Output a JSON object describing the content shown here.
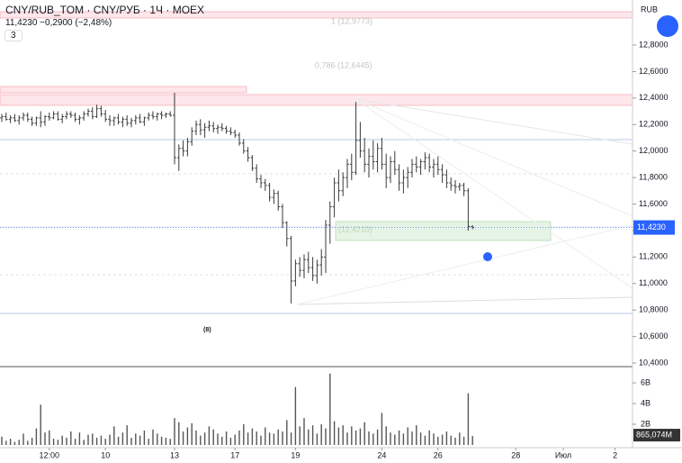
{
  "header": {
    "symbol": "CNY/RUB_TOM · CNY/РУБ · 1Ч · MOEX",
    "quote": "11,4230 −0,2900 (−2,48%)",
    "indicators_count": "3",
    "currency": "RUB"
  },
  "chart_data": {
    "type": "ohlc",
    "annotations": [
      "1 (12,9773)",
      "0,786 (12,6445)",
      "(11,4210)",
      "(8)"
    ],
    "ylim": [
      10.373,
      13.14
    ],
    "yticks": [
      {
        "value": 10.4,
        "label": "10,4000"
      },
      {
        "value": 10.6,
        "label": "10,6000"
      },
      {
        "value": 10.8,
        "label": "10,8000"
      },
      {
        "value": 11,
        "label": "11,0000"
      },
      {
        "value": 11.2,
        "label": "11,2000"
      },
      {
        "value": 11.4,
        "label": "11,4000"
      },
      {
        "value": 11.6,
        "label": "11,6000"
      },
      {
        "value": 11.8,
        "label": "11,8000"
      },
      {
        "value": 12,
        "label": "12,0000"
      },
      {
        "value": 12.2,
        "label": "12,2000"
      },
      {
        "value": 12.4,
        "label": "12,4000"
      },
      {
        "value": 12.6,
        "label": "12,6000"
      },
      {
        "value": 12.8,
        "label": "12,8000"
      }
    ],
    "last_price": {
      "value": 11.423,
      "label": "11,4230"
    },
    "xticks": [
      {
        "value": 11,
        "label": "12:00"
      },
      {
        "value": 24,
        "label": "10"
      },
      {
        "value": 40,
        "label": "13"
      },
      {
        "value": 54,
        "label": "17"
      },
      {
        "value": 68,
        "label": "19"
      },
      {
        "value": 88,
        "label": "24"
      },
      {
        "value": 101,
        "label": "26"
      },
      {
        "value": 119,
        "label": "28"
      },
      {
        "value": 130,
        "label": "Июл"
      },
      {
        "value": 142,
        "label": "2"
      }
    ],
    "ohlc": [
      [
        12.25,
        12.28,
        12.22,
        12.26
      ],
      [
        12.26,
        12.29,
        12.23,
        12.24
      ],
      [
        12.24,
        12.27,
        12.21,
        12.25
      ],
      [
        12.25,
        12.28,
        12.22,
        12.23
      ],
      [
        12.23,
        12.27,
        12.2,
        12.25
      ],
      [
        12.25,
        12.29,
        12.23,
        12.27
      ],
      [
        12.27,
        12.29,
        12.22,
        12.24
      ],
      [
        12.24,
        12.26,
        12.19,
        12.21
      ],
      [
        12.21,
        12.26,
        12.19,
        12.25
      ],
      [
        12.25,
        12.3,
        12.18,
        12.22
      ],
      [
        12.22,
        12.27,
        12.19,
        12.26
      ],
      [
        12.26,
        12.29,
        12.23,
        12.25
      ],
      [
        12.25,
        12.3,
        12.24,
        12.28
      ],
      [
        12.28,
        12.3,
        12.23,
        12.24
      ],
      [
        12.24,
        12.28,
        12.21,
        12.26
      ],
      [
        12.26,
        12.3,
        12.24,
        12.28
      ],
      [
        12.28,
        12.3,
        12.25,
        12.27
      ],
      [
        12.27,
        12.29,
        12.22,
        12.24
      ],
      [
        12.24,
        12.27,
        12.2,
        12.25
      ],
      [
        12.25,
        12.3,
        12.23,
        12.28
      ],
      [
        12.28,
        12.32,
        12.26,
        12.3
      ],
      [
        12.3,
        12.33,
        12.24,
        12.26
      ],
      [
        12.26,
        12.35,
        12.25,
        12.32
      ],
      [
        12.32,
        12.34,
        12.26,
        12.28
      ],
      [
        12.28,
        12.31,
        12.22,
        12.24
      ],
      [
        12.24,
        12.27,
        12.19,
        12.23
      ],
      [
        12.23,
        12.26,
        12.19,
        12.25
      ],
      [
        12.25,
        12.28,
        12.2,
        12.22
      ],
      [
        12.22,
        12.26,
        12.18,
        12.24
      ],
      [
        12.24,
        12.27,
        12.19,
        12.21
      ],
      [
        12.21,
        12.25,
        12.18,
        12.23
      ],
      [
        12.23,
        12.27,
        12.2,
        12.25
      ],
      [
        12.25,
        12.28,
        12.21,
        12.22
      ],
      [
        12.22,
        12.26,
        12.19,
        12.25
      ],
      [
        12.25,
        12.29,
        12.23,
        12.27
      ],
      [
        12.27,
        12.3,
        12.24,
        12.26
      ],
      [
        12.26,
        12.29,
        12.23,
        12.28
      ],
      [
        12.28,
        12.3,
        12.24,
        12.27
      ],
      [
        12.27,
        12.29,
        12.25,
        12.28
      ],
      [
        12.28,
        12.3,
        12.26,
        12.27
      ],
      [
        12.27,
        12.44,
        11.9,
        11.95
      ],
      [
        11.95,
        12.05,
        11.85,
        12.02
      ],
      [
        12.02,
        12.08,
        11.96,
        12.0
      ],
      [
        12.0,
        12.1,
        11.96,
        12.07
      ],
      [
        12.07,
        12.18,
        12.04,
        12.15
      ],
      [
        12.15,
        12.23,
        12.12,
        12.2
      ],
      [
        12.2,
        12.24,
        12.12,
        12.16
      ],
      [
        12.16,
        12.21,
        12.1,
        12.18
      ],
      [
        12.18,
        12.23,
        12.15,
        12.19
      ],
      [
        12.19,
        12.22,
        12.14,
        12.17
      ],
      [
        12.17,
        12.2,
        12.13,
        12.18
      ],
      [
        12.18,
        12.21,
        12.15,
        12.17
      ],
      [
        12.17,
        12.19,
        12.13,
        12.15
      ],
      [
        12.15,
        12.18,
        12.12,
        12.14
      ],
      [
        12.14,
        12.16,
        12.1,
        12.12
      ],
      [
        12.12,
        12.14,
        12.04,
        12.06
      ],
      [
        12.06,
        12.09,
        11.98,
        12.0
      ],
      [
        12.0,
        12.03,
        11.92,
        11.95
      ],
      [
        11.95,
        11.97,
        11.85,
        11.87
      ],
      [
        11.87,
        11.9,
        11.76,
        11.79
      ],
      [
        11.79,
        11.82,
        11.72,
        11.76
      ],
      [
        11.76,
        11.79,
        11.7,
        11.74
      ],
      [
        11.74,
        11.76,
        11.62,
        11.65
      ],
      [
        11.65,
        11.71,
        11.6,
        11.68
      ],
      [
        11.68,
        11.7,
        11.55,
        11.58
      ],
      [
        11.58,
        11.6,
        11.42,
        11.46
      ],
      [
        11.46,
        11.47,
        11.28,
        11.34
      ],
      [
        11.34,
        11.36,
        10.85,
        11.02
      ],
      [
        11.02,
        11.18,
        10.98,
        11.15
      ],
      [
        11.15,
        11.2,
        11.05,
        11.1
      ],
      [
        11.1,
        11.22,
        11.04,
        11.18
      ],
      [
        11.18,
        11.24,
        11.08,
        11.12
      ],
      [
        11.12,
        11.2,
        11.02,
        11.06
      ],
      [
        11.06,
        11.18,
        11.0,
        11.14
      ],
      [
        11.14,
        11.26,
        11.06,
        11.2
      ],
      [
        11.2,
        11.48,
        11.08,
        11.44
      ],
      [
        11.44,
        11.62,
        11.3,
        11.58
      ],
      [
        11.58,
        11.8,
        11.5,
        11.76
      ],
      [
        11.76,
        11.86,
        11.62,
        11.7
      ],
      [
        11.7,
        11.84,
        11.66,
        11.8
      ],
      [
        11.8,
        11.94,
        11.72,
        11.9
      ],
      [
        11.9,
        11.98,
        11.78,
        11.84
      ],
      [
        11.84,
        12.37,
        11.82,
        12.08
      ],
      [
        12.08,
        12.22,
        11.95,
        12.0
      ],
      [
        12.0,
        12.1,
        11.84,
        11.9
      ],
      [
        11.9,
        12.02,
        11.8,
        11.96
      ],
      [
        11.96,
        12.08,
        11.86,
        11.92
      ],
      [
        11.92,
        12.06,
        11.84,
        12.02
      ],
      [
        12.02,
        12.1,
        11.86,
        11.9
      ],
      [
        11.9,
        11.98,
        11.72,
        11.8
      ],
      [
        11.8,
        11.96,
        11.76,
        11.92
      ],
      [
        11.92,
        12.0,
        11.82,
        11.86
      ],
      [
        11.86,
        11.9,
        11.7,
        11.76
      ],
      [
        11.76,
        11.86,
        11.68,
        11.8
      ],
      [
        11.8,
        11.88,
        11.72,
        11.84
      ],
      [
        11.84,
        11.94,
        11.8,
        11.9
      ],
      [
        11.9,
        11.96,
        11.84,
        11.88
      ],
      [
        11.88,
        11.94,
        11.82,
        11.92
      ],
      [
        11.92,
        11.99,
        11.86,
        11.95
      ],
      [
        11.95,
        11.98,
        11.84,
        11.88
      ],
      [
        11.88,
        11.94,
        11.8,
        11.9
      ],
      [
        11.9,
        11.96,
        11.82,
        11.86
      ],
      [
        11.86,
        11.9,
        11.76,
        11.82
      ],
      [
        11.82,
        11.86,
        11.72,
        11.76
      ],
      [
        11.76,
        11.8,
        11.7,
        11.74
      ],
      [
        11.74,
        11.78,
        11.68,
        11.73
      ],
      [
        11.73,
        11.76,
        11.7,
        11.74
      ],
      [
        11.74,
        11.76,
        11.66,
        11.7
      ],
      [
        11.7,
        11.72,
        11.4,
        11.43
      ],
      [
        11.43,
        11.44,
        11.41,
        11.423
      ]
    ],
    "volume": {
      "ylim": [
        0,
        7.57
      ],
      "yticks": [
        {
          "value": 2,
          "label": "2B"
        },
        {
          "value": 4,
          "label": "4B"
        },
        {
          "value": 6,
          "label": "6B"
        }
      ],
      "last": {
        "value": 0.865074,
        "label": "865,074M"
      },
      "values": [
        0.8,
        0.4,
        0.6,
        0.3,
        0.5,
        1.1,
        0.4,
        0.7,
        1.6,
        3.9,
        1.2,
        1.4,
        0.6,
        0.5,
        0.9,
        0.7,
        1.3,
        0.6,
        1.2,
        0.5,
        1.0,
        1.1,
        0.7,
        0.9,
        0.6,
        1.0,
        1.8,
        0.8,
        1.2,
        1.9,
        0.7,
        1.1,
        0.9,
        1.4,
        0.6,
        1.5,
        1.1,
        0.8,
        0.7,
        0.6,
        2.6,
        2.2,
        1.3,
        1.7,
        2.1,
        1.4,
        0.9,
        1.2,
        1.8,
        1.5,
        1.1,
        0.8,
        1.3,
        0.7,
        1.0,
        1.4,
        2.0,
        1.2,
        1.6,
        1.3,
        0.9,
        1.7,
        1.2,
        1.1,
        1.5,
        1.3,
        2.4,
        1.2,
        5.6,
        1.8,
        2.6,
        1.5,
        1.9,
        1.1,
        2.0,
        1.6,
        6.9,
        2.3,
        1.7,
        1.9,
        1.2,
        1.8,
        1.4,
        1.6,
        2.2,
        1.3,
        1.1,
        1.5,
        3.1,
        1.8,
        1.2,
        1.0,
        1.4,
        1.1,
        1.7,
        1.3,
        1.9,
        1.2,
        0.9,
        1.4,
        1.1,
        0.8,
        1.0,
        1.3,
        0.9,
        0.7,
        1.2,
        0.8,
        5.0,
        0.865074
      ]
    }
  }
}
